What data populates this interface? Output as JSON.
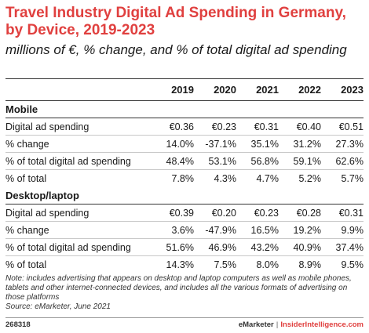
{
  "chart_data": {
    "type": "table",
    "title": "Travel Industry Digital Ad Spending in Germany, by Device, 2019-2023",
    "subtitle": "millions of €, % change, and % of total digital ad spending",
    "columns": [
      "2019",
      "2020",
      "2021",
      "2022",
      "2023"
    ],
    "sections": [
      {
        "name": "Mobile",
        "rows": [
          {
            "label": "Digital ad spending",
            "values": [
              "€0.36",
              "€0.23",
              "€0.31",
              "€0.40",
              "€0.51"
            ]
          },
          {
            "label": "% change",
            "values": [
              "14.0%",
              "-37.1%",
              "35.1%",
              "31.2%",
              "27.3%"
            ]
          },
          {
            "label": "% of total digital ad spending",
            "values": [
              "48.4%",
              "53.1%",
              "56.8%",
              "59.1%",
              "62.6%"
            ]
          },
          {
            "label": "% of total",
            "values": [
              "7.8%",
              "4.3%",
              "4.7%",
              "5.2%",
              "5.7%"
            ]
          }
        ]
      },
      {
        "name": "Desktop/laptop",
        "rows": [
          {
            "label": "Digital ad spending",
            "values": [
              "€0.39",
              "€0.20",
              "€0.23",
              "€0.28",
              "€0.31"
            ]
          },
          {
            "label": "% change",
            "values": [
              "3.6%",
              "-47.9%",
              "16.5%",
              "19.2%",
              "9.9%"
            ]
          },
          {
            "label": "% of total digital ad spending",
            "values": [
              "51.6%",
              "46.9%",
              "43.2%",
              "40.9%",
              "37.4%"
            ]
          },
          {
            "label": "% of total",
            "values": [
              "14.3%",
              "7.5%",
              "8.0%",
              "8.9%",
              "9.5%"
            ]
          }
        ]
      }
    ]
  },
  "note": "Note: includes advertising that appears on desktop and laptop computers as well as mobile phones, tablets and other internet-connected devices, and includes all the various formats of advertising on those platforms",
  "source": "Source: eMarketer, June 2021",
  "footer": {
    "id": "268318",
    "brand1": "eMarketer",
    "separator": "|",
    "brand2": "InsiderIntelligence.com"
  },
  "colors": {
    "title": "#e0403f",
    "text": "#1a1a1a"
  }
}
